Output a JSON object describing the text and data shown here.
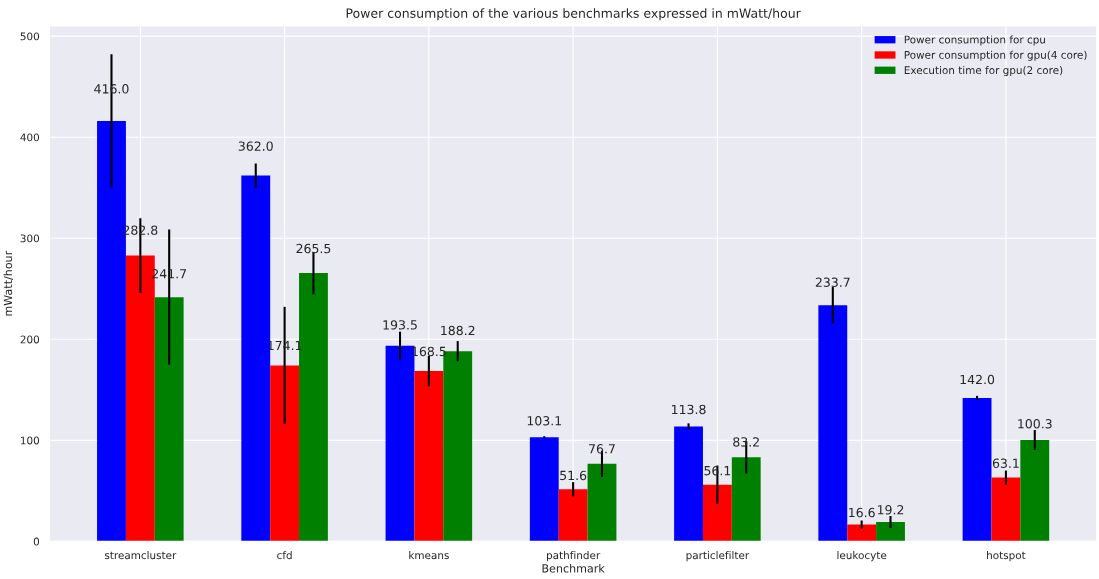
{
  "chart_data": {
    "type": "bar",
    "title": "Power consumption of the various benchmarks expressed in mWatt/hour",
    "xlabel": "Benchmark",
    "ylabel": "mWatt/hour",
    "categories": [
      "streamcluster",
      "cfd",
      "kmeans",
      "pathfinder",
      "particlefilter",
      "leukocyte",
      "hotspot"
    ],
    "series": [
      {
        "name": "Power consumption for cpu",
        "color": "#0000ff",
        "values": [
          416.0,
          362.0,
          193.5,
          103.1,
          113.8,
          233.7,
          142.0
        ],
        "value_labels": [
          "416.0",
          "362.0",
          "193.5",
          "103.1",
          "113.8",
          "233.7",
          "142.0"
        ],
        "errors": [
          66,
          12,
          14,
          1,
          3,
          18,
          2
        ]
      },
      {
        "name": "Power consumption for gpu(4 core)",
        "color": "#ff0000",
        "values": [
          282.8,
          174.1,
          168.5,
          51.6,
          56.1,
          16.6,
          63.1
        ],
        "value_labels": [
          "282.8",
          "174.1",
          "168.5",
          "51.6",
          "56.1",
          "16.6",
          "63.1"
        ],
        "errors": [
          37,
          58,
          15,
          7,
          19,
          4,
          7
        ]
      },
      {
        "name": "Execution time for gpu(2 core)",
        "color": "#008000",
        "values": [
          241.7,
          265.5,
          188.2,
          76.7,
          83.2,
          19.2,
          100.3
        ],
        "value_labels": [
          "241.7",
          "265.5",
          "188.2",
          "76.7",
          "83.2",
          "19.2",
          "100.3"
        ],
        "errors": [
          67,
          21,
          10,
          13,
          16,
          6,
          10
        ]
      }
    ],
    "ylim": [
      0,
      510
    ],
    "yticks": [
      0,
      100,
      200,
      300,
      400,
      500
    ],
    "grid": true,
    "legend": "top right"
  }
}
